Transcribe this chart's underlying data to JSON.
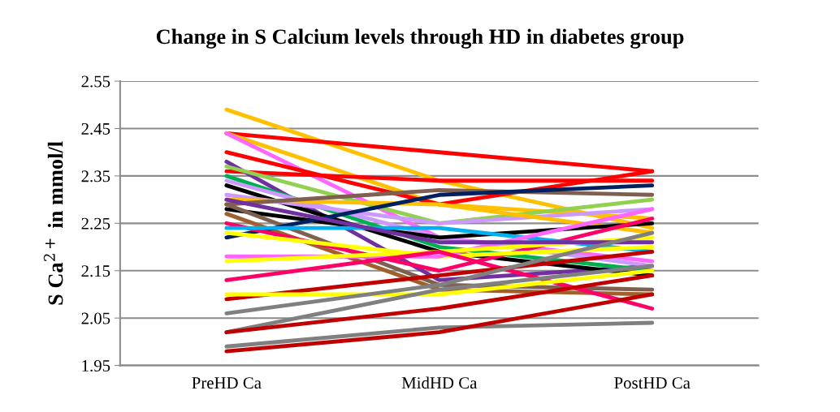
{
  "chart_data": {
    "type": "line",
    "title": "Change in S Calcium levels through HD in diabetes group",
    "ylabel": "S Ca$^{2+}$ in mmol/l",
    "categories": [
      "PreHD Ca",
      "MidHD Ca",
      "PostHD Ca"
    ],
    "ylim": [
      1.95,
      2.55
    ],
    "yticks": [
      1.95,
      2.05,
      2.15,
      2.25,
      2.35,
      2.45,
      2.55
    ],
    "grid": "y",
    "marker": "none",
    "line_style": "solid",
    "series": [
      {
        "color": "#ffc000",
        "values": [
          2.49,
          2.34,
          2.24
        ]
      },
      {
        "color": "#ff0000",
        "values": [
          2.44,
          2.4,
          2.36
        ]
      },
      {
        "color": "#ffc000",
        "values": [
          2.44,
          2.29,
          2.26
        ]
      },
      {
        "color": "#ff66ff",
        "values": [
          2.44,
          2.22,
          2.17
        ]
      },
      {
        "color": "#ff0000",
        "values": [
          2.4,
          2.29,
          2.36
        ]
      },
      {
        "color": "#ff0000",
        "values": [
          2.36,
          2.34,
          2.34
        ]
      },
      {
        "color": "#7030a0",
        "values": [
          2.38,
          2.13,
          2.16
        ]
      },
      {
        "color": "#92d050",
        "values": [
          2.37,
          2.25,
          2.3
        ]
      },
      {
        "color": "#00b050",
        "values": [
          2.35,
          2.2,
          2.15
        ]
      },
      {
        "color": "#cc99ff",
        "values": [
          2.34,
          2.22,
          2.16
        ]
      },
      {
        "color": "#000000",
        "values": [
          2.33,
          2.19,
          2.14
        ]
      },
      {
        "color": "#cc99ff",
        "values": [
          2.31,
          2.25,
          2.28
        ]
      },
      {
        "color": "#ffc000",
        "values": [
          2.3,
          2.29,
          2.23
        ]
      },
      {
        "color": "#7f6050",
        "values": [
          2.29,
          2.32,
          2.31
        ]
      },
      {
        "color": "#000000",
        "values": [
          2.28,
          2.22,
          2.25
        ]
      },
      {
        "color": "#7f6050",
        "values": [
          2.29,
          2.12,
          2.11
        ]
      },
      {
        "color": "#a0602d",
        "values": [
          2.27,
          2.11,
          2.1
        ]
      },
      {
        "color": "#002060",
        "values": [
          2.22,
          2.31,
          2.33
        ]
      },
      {
        "color": "#ff0066",
        "values": [
          2.25,
          2.15,
          2.26
        ]
      },
      {
        "color": "#00b0f0",
        "values": [
          2.24,
          2.24,
          2.19
        ]
      },
      {
        "color": "#ffff00",
        "values": [
          2.23,
          2.18,
          2.2
        ]
      },
      {
        "color": "#ff66ff",
        "values": [
          2.18,
          2.18,
          2.28
        ]
      },
      {
        "color": "#ffff00",
        "values": [
          2.17,
          2.19,
          2.22
        ]
      },
      {
        "color": "#ff0066",
        "values": [
          2.13,
          2.19,
          2.07
        ]
      },
      {
        "color": "#7030a0",
        "values": [
          2.3,
          2.21,
          2.21
        ]
      },
      {
        "color": "#c00000",
        "values": [
          2.09,
          2.14,
          2.19
        ]
      },
      {
        "color": "#ffff00",
        "values": [
          2.1,
          2.1,
          2.15
        ]
      },
      {
        "color": "#808080",
        "values": [
          2.06,
          2.12,
          2.23
        ]
      },
      {
        "color": "#808080",
        "values": [
          2.02,
          2.11,
          2.16
        ]
      },
      {
        "color": "#c00000",
        "values": [
          2.02,
          2.07,
          2.14
        ]
      },
      {
        "color": "#808080",
        "values": [
          1.99,
          2.03,
          2.04
        ]
      },
      {
        "color": "#c00000",
        "values": [
          1.98,
          2.02,
          2.1
        ]
      }
    ]
  }
}
